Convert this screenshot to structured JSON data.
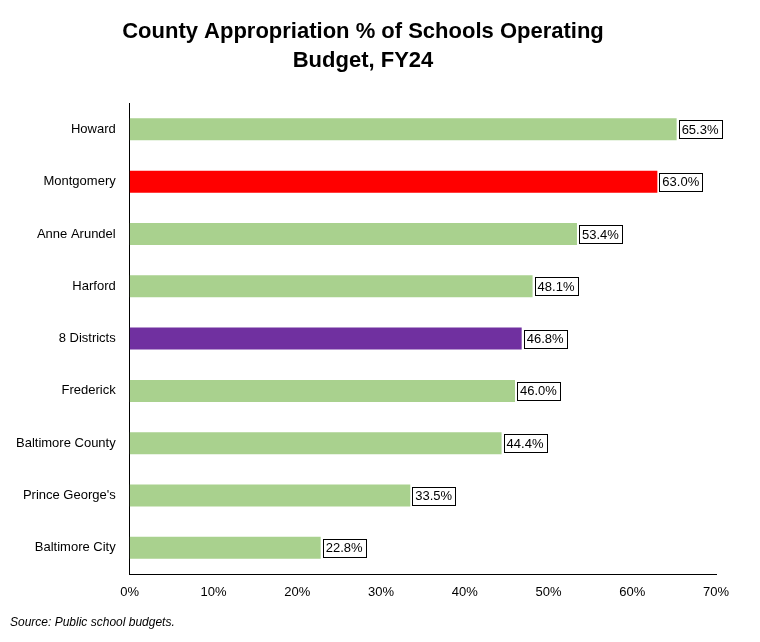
{
  "chart_data": {
    "type": "bar",
    "title": [
      "County Appropriation % of Schools Operating",
      "Budget, FY24"
    ],
    "annotations": [
      "Source: Public school budgets."
    ],
    "orientation": "horizontal",
    "categories": [
      "Howard",
      "Montgomery",
      "Anne Arundel",
      "Harford",
      "8 Districts",
      "Frederick",
      "Baltimore County",
      "Prince George's",
      "Baltimore City"
    ],
    "values": [
      65.3,
      63.0,
      53.4,
      48.1,
      46.8,
      46.0,
      44.4,
      33.5,
      22.8
    ],
    "value_labels": [
      "65.3%",
      "63.0%",
      "53.4%",
      "48.1%",
      "46.8%",
      "46.0%",
      "44.4%",
      "33.5%",
      "22.8%"
    ],
    "colors": [
      "#a9d18e",
      "#ff0000",
      "#a9d18e",
      "#a9d18e",
      "#7030a0",
      "#a9d18e",
      "#a9d18e",
      "#a9d18e",
      "#a9d18e"
    ],
    "xlim": [
      0,
      70
    ],
    "xticks": [
      {
        "value": 0,
        "label": "0%"
      },
      {
        "value": 10,
        "label": "10%"
      },
      {
        "value": 20,
        "label": "20%"
      },
      {
        "value": 30,
        "label": "30%"
      },
      {
        "value": 40,
        "label": "40%"
      },
      {
        "value": 50,
        "label": "50%"
      },
      {
        "value": 60,
        "label": "60%"
      },
      {
        "value": 70,
        "label": "70%"
      }
    ],
    "grid": false,
    "data_labels": true
  }
}
